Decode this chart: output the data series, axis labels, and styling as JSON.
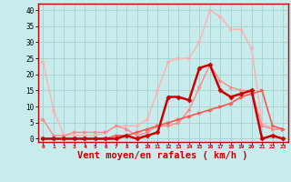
{
  "background_color": "#c8ecec",
  "grid_color": "#a8d4d4",
  "xlabel": "Vent moyen/en rafales ( km/h )",
  "xlabel_color": "#cc0000",
  "xlabel_fontsize": 7.5,
  "ylim": [
    -1,
    42
  ],
  "xlim": [
    -0.5,
    23.5
  ],
  "series": [
    {
      "name": "line1_lightest",
      "color": "#ffb0b0",
      "linewidth": 1.0,
      "marker": ">",
      "markersize": 2.5,
      "x": [
        0,
        1,
        2,
        3,
        4,
        5,
        6,
        7,
        8,
        9,
        10,
        11,
        12,
        13,
        14,
        15,
        16,
        17,
        18,
        19,
        20,
        21,
        22,
        23
      ],
      "y": [
        24,
        9,
        1,
        1,
        1,
        1,
        2,
        4,
        4,
        4,
        6,
        15,
        24,
        25,
        25,
        30,
        40,
        38,
        34,
        34,
        28,
        5,
        3,
        3
      ]
    },
    {
      "name": "line2_light",
      "color": "#ff8888",
      "linewidth": 1.0,
      "marker": ">",
      "markersize": 2.5,
      "x": [
        0,
        1,
        2,
        3,
        4,
        5,
        6,
        7,
        8,
        9,
        10,
        11,
        12,
        13,
        14,
        15,
        16,
        17,
        18,
        19,
        20,
        21,
        22,
        23
      ],
      "y": [
        6,
        1,
        1,
        2,
        2,
        2,
        2,
        4,
        3,
        1,
        2,
        4,
        4,
        5,
        9,
        16,
        23,
        18,
        16,
        15,
        15,
        4,
        3,
        3
      ]
    },
    {
      "name": "line3_medium",
      "color": "#ff5555",
      "linewidth": 1.2,
      "marker": ">",
      "markersize": 2.5,
      "x": [
        0,
        1,
        2,
        3,
        4,
        5,
        6,
        7,
        8,
        9,
        10,
        11,
        12,
        13,
        14,
        15,
        16,
        17,
        18,
        19,
        20,
        21,
        22,
        23
      ],
      "y": [
        0,
        0,
        0,
        0,
        0,
        0,
        0,
        1,
        1,
        2,
        3,
        4,
        5,
        6,
        7,
        8,
        9,
        10,
        11,
        13,
        14,
        15,
        4,
        3
      ]
    },
    {
      "name": "line4_dark",
      "color": "#cc0000",
      "linewidth": 1.8,
      "marker": "D",
      "markersize": 2.5,
      "x": [
        0,
        1,
        2,
        3,
        4,
        5,
        6,
        7,
        8,
        9,
        10,
        11,
        12,
        13,
        14,
        15,
        16,
        17,
        18,
        19,
        20,
        21,
        22,
        23
      ],
      "y": [
        0,
        0,
        0,
        0,
        0,
        0,
        0,
        0,
        1,
        0,
        1,
        2,
        13,
        13,
        12,
        22,
        23,
        15,
        13,
        14,
        15,
        0,
        1,
        0
      ]
    }
  ]
}
